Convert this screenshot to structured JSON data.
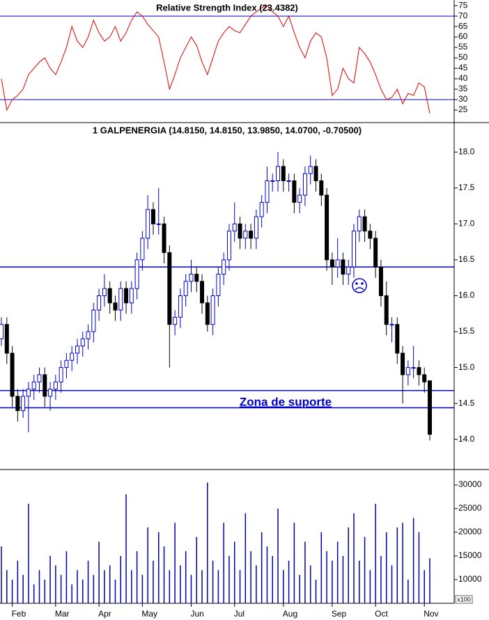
{
  "chart_data": [
    {
      "type": "line",
      "title": "Relative Strength Index (23.4382)",
      "color": "#e00000",
      "values": [
        40,
        25,
        30,
        32,
        35,
        42,
        45,
        48,
        50,
        45,
        42,
        48,
        55,
        65,
        58,
        55,
        60,
        68,
        62,
        58,
        60,
        65,
        58,
        62,
        68,
        72,
        70,
        66,
        63,
        60,
        48,
        35,
        42,
        50,
        55,
        60,
        56,
        48,
        42,
        50,
        58,
        62,
        65,
        63,
        62,
        66,
        70,
        72,
        74,
        75,
        72,
        70,
        65,
        70,
        62,
        55,
        50,
        58,
        62,
        60,
        50,
        32,
        35,
        45,
        40,
        38,
        55,
        52,
        48,
        42,
        35,
        30,
        31,
        35,
        28,
        33,
        32,
        38,
        36,
        23.4382
      ],
      "ylim": [
        19,
        77.7
      ],
      "yticks": [
        25,
        30,
        35,
        40,
        45,
        50,
        55,
        60,
        65,
        70,
        75
      ],
      "hlines": [
        70,
        30
      ],
      "hline_color": "#0000cc"
    },
    {
      "type": "candlestick",
      "title": "1 GALPENERGIA (14.8150, 14.8150, 13.9850, 14.0700, -0.70500)",
      "up_color": "#0000cc",
      "down_color": "#000000",
      "open": [
        15.4,
        15.6,
        15.2,
        14.6,
        14.4,
        14.6,
        14.7,
        14.8,
        14.9,
        14.6,
        14.7,
        14.8,
        15.0,
        15.1,
        15.2,
        15.3,
        15.4,
        15.5,
        15.8,
        16.0,
        16.1,
        15.9,
        15.8,
        16.1,
        15.9,
        16.1,
        16.5,
        16.8,
        17.2,
        17.0,
        17.0,
        16.6,
        15.6,
        15.7,
        16.0,
        16.2,
        16.3,
        16.2,
        15.9,
        15.6,
        16.0,
        16.3,
        16.5,
        16.9,
        17.0,
        16.8,
        16.9,
        16.8,
        17.1,
        17.3,
        17.6,
        17.6,
        17.8,
        17.6,
        17.6,
        17.3,
        17.4,
        17.7,
        17.8,
        17.6,
        17.4,
        16.5,
        16.4,
        16.5,
        16.3,
        16.4,
        16.9,
        17.1,
        16.9,
        16.8,
        16.4,
        16.0,
        15.6,
        15.6,
        15.2,
        14.9,
        15.0,
        15.0,
        14.9,
        14.815
      ],
      "high": [
        15.7,
        15.7,
        15.3,
        14.7,
        14.7,
        14.8,
        14.9,
        15.0,
        15.0,
        14.8,
        14.9,
        15.1,
        15.2,
        15.3,
        15.4,
        15.5,
        15.6,
        15.9,
        16.1,
        16.3,
        16.2,
        16.0,
        16.2,
        16.2,
        16.2,
        16.6,
        16.9,
        17.4,
        17.3,
        17.5,
        17.1,
        16.7,
        15.8,
        16.1,
        16.3,
        16.5,
        16.4,
        16.3,
        16.0,
        16.1,
        16.4,
        16.6,
        17.0,
        17.3,
        17.1,
        17.0,
        17.0,
        17.2,
        17.4,
        17.8,
        17.7,
        18.0,
        17.9,
        17.7,
        17.7,
        17.5,
        17.8,
        17.95,
        17.9,
        17.7,
        17.5,
        16.6,
        16.8,
        16.6,
        16.5,
        17.0,
        17.2,
        17.2,
        17.0,
        16.9,
        16.5,
        16.2,
        15.7,
        15.7,
        15.3,
        15.1,
        15.3,
        15.1,
        15.0,
        14.815
      ],
      "low": [
        15.3,
        15.05,
        14.45,
        14.25,
        14.3,
        14.1,
        14.55,
        14.65,
        14.45,
        14.4,
        14.55,
        14.65,
        14.85,
        14.95,
        15.05,
        15.15,
        15.25,
        15.35,
        15.65,
        15.85,
        15.75,
        15.65,
        15.65,
        15.75,
        15.75,
        15.95,
        16.35,
        16.65,
        16.85,
        16.85,
        16.45,
        15.0,
        15.45,
        15.55,
        15.85,
        16.05,
        16.05,
        15.75,
        15.5,
        15.45,
        15.85,
        16.15,
        16.35,
        16.75,
        16.65,
        16.65,
        16.65,
        16.65,
        16.95,
        17.15,
        17.45,
        17.45,
        17.45,
        17.45,
        17.15,
        17.15,
        17.25,
        17.55,
        17.45,
        17.25,
        16.35,
        16.15,
        16.25,
        16.15,
        16.15,
        16.25,
        16.75,
        16.75,
        16.65,
        16.25,
        15.85,
        15.45,
        15.35,
        15.05,
        14.5,
        14.75,
        14.85,
        14.75,
        14.65,
        13.985
      ],
      "close": [
        15.6,
        15.2,
        14.6,
        14.4,
        14.6,
        14.7,
        14.8,
        14.9,
        14.6,
        14.7,
        14.8,
        15.0,
        15.1,
        15.2,
        15.3,
        15.4,
        15.5,
        15.8,
        16.0,
        16.1,
        15.9,
        15.8,
        16.1,
        15.9,
        16.1,
        16.5,
        16.8,
        17.2,
        17.0,
        17.0,
        16.6,
        15.6,
        15.7,
        16.0,
        16.2,
        16.3,
        16.2,
        15.9,
        15.6,
        16.0,
        16.3,
        16.5,
        16.9,
        17.0,
        16.8,
        16.9,
        16.8,
        17.1,
        17.3,
        17.6,
        17.6,
        17.8,
        17.6,
        17.6,
        17.3,
        17.4,
        17.7,
        17.8,
        17.6,
        17.4,
        16.5,
        16.4,
        16.5,
        16.3,
        16.4,
        16.9,
        17.1,
        16.9,
        16.8,
        16.4,
        16.0,
        15.6,
        15.6,
        15.2,
        14.9,
        15.0,
        15.0,
        14.9,
        14.8,
        14.07
      ],
      "ylim": [
        13.58,
        18.41
      ],
      "yticks": [
        {
          "value": 14,
          "label": "14.0"
        },
        14.5,
        {
          "value": 15,
          "label": "15.0"
        },
        15.5,
        {
          "value": 16,
          "label": "16.0"
        },
        16.5,
        {
          "value": 17,
          "label": "17.0"
        },
        17.5,
        {
          "value": 18,
          "label": "18.0"
        }
      ],
      "hlines": [
        16.4,
        14.68,
        14.44
      ],
      "hline_color": "#0000cc",
      "annotation": "Zona de suporte"
    },
    {
      "type": "bar",
      "color": "#0000aa",
      "unit_label": "x100",
      "categories": [
        null,
        null,
        "Feb",
        null,
        null,
        null,
        null,
        null,
        null,
        null,
        "Mar",
        null,
        null,
        null,
        null,
        null,
        null,
        null,
        "Apr",
        null,
        null,
        null,
        null,
        null,
        null,
        null,
        "May",
        null,
        null,
        null,
        null,
        null,
        null,
        null,
        null,
        "Jun",
        null,
        null,
        null,
        null,
        null,
        null,
        null,
        "Jul",
        null,
        null,
        null,
        null,
        null,
        null,
        null,
        null,
        "Aug",
        null,
        null,
        null,
        null,
        null,
        null,
        null,
        null,
        "Sep",
        null,
        null,
        null,
        null,
        null,
        null,
        null,
        "Oct",
        null,
        null,
        null,
        null,
        null,
        null,
        null,
        null,
        "Nov",
        null
      ],
      "values": [
        17000,
        12000,
        10000,
        14000,
        11000,
        26000,
        9000,
        12000,
        10000,
        15000,
        13000,
        11000,
        16000,
        9000,
        12000,
        10000,
        14000,
        11000,
        18000,
        12000,
        13000,
        10000,
        15000,
        28000,
        12000,
        16000,
        11000,
        21000,
        14000,
        20000,
        17000,
        12000,
        22000,
        13000,
        16000,
        11000,
        19000,
        12000,
        30500,
        14000,
        12000,
        22000,
        15000,
        18000,
        12000,
        24000,
        16000,
        13000,
        20000,
        17000,
        15000,
        25000,
        12000,
        14000,
        22000,
        11000,
        18000,
        13000,
        10000,
        20000,
        16000,
        14000,
        18000,
        15000,
        21000,
        24000,
        14000,
        19000,
        12000,
        26000,
        15000,
        20000,
        13000,
        21000,
        22000,
        10000,
        23000,
        20000,
        12000,
        14500
      ],
      "ylim": [
        5000,
        33235
      ],
      "yticks": [
        10000,
        15000,
        20000,
        25000,
        30000
      ]
    }
  ]
}
